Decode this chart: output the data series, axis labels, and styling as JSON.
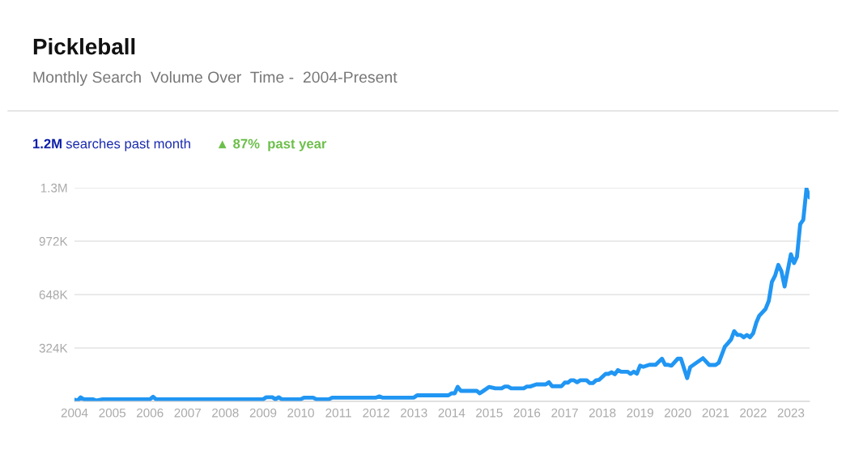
{
  "chart_data": {
    "type": "line",
    "title": "Pickleball",
    "subtitle": "Monthly Search  Volume Over  Time -  2004-Present",
    "annotations": [
      "1.2M",
      "searches past month",
      "▲ 87%  past year"
    ],
    "x": [
      "2004-01",
      "2004-02",
      "2004-03",
      "2004-04",
      "2004-07",
      "2004-08",
      "2004-10",
      "2006-01",
      "2006-02",
      "2006-03",
      "2009-01",
      "2009-02",
      "2009-04",
      "2009-05",
      "2009-06",
      "2009-07",
      "2010-01",
      "2010-02",
      "2010-05",
      "2010-06",
      "2010-10",
      "2010-11",
      "2012-01",
      "2012-02",
      "2012-03",
      "2013-01",
      "2013-02",
      "2013-12",
      "2014-01",
      "2014-02",
      "2014-03",
      "2014-04",
      "2014-09",
      "2014-10",
      "2014-11",
      "2015-01",
      "2015-03",
      "2015-05",
      "2015-06",
      "2015-07",
      "2015-08",
      "2015-12",
      "2016-01",
      "2016-02",
      "2016-04",
      "2016-07",
      "2016-08",
      "2016-09",
      "2016-12",
      "2017-01",
      "2017-02",
      "2017-03",
      "2017-04",
      "2017-05",
      "2017-06",
      "2017-08",
      "2017-09",
      "2017-10",
      "2017-11",
      "2017-12",
      "2018-02",
      "2018-03",
      "2018-04",
      "2018-05",
      "2018-06",
      "2018-07",
      "2018-09",
      "2018-10",
      "2018-11",
      "2018-12",
      "2019-01",
      "2019-02",
      "2019-04",
      "2019-06",
      "2019-08",
      "2019-09",
      "2019-10",
      "2019-11",
      "2020-01",
      "2020-02",
      "2020-04",
      "2020-05",
      "2020-09",
      "2020-11",
      "2021-01",
      "2021-02",
      "2021-04",
      "2021-05",
      "2021-06",
      "2021-07",
      "2021-08",
      "2021-09",
      "2021-10",
      "2021-11",
      "2021-12",
      "2022-01",
      "2022-02",
      "2022-03",
      "2022-05",
      "2022-06",
      "2022-07",
      "2022-08",
      "2022-09",
      "2022-10",
      "2022-11",
      "2023-01",
      "2023-02",
      "2023-03",
      "2023-04",
      "2023-05",
      "2023-06",
      "2023-07"
    ],
    "series": [
      {
        "color": "#2196f3",
        "values": [
          10000,
          5000,
          25000,
          12000,
          12000,
          5000,
          13000,
          13000,
          28000,
          13000,
          13000,
          25000,
          25000,
          13000,
          25000,
          13000,
          13000,
          23000,
          23000,
          13000,
          13000,
          23000,
          23000,
          30000,
          23000,
          23000,
          37000,
          37000,
          49000,
          49000,
          88000,
          64000,
          64000,
          49000,
          62000,
          88000,
          79000,
          79000,
          90000,
          90000,
          79000,
          79000,
          90000,
          90000,
          103000,
          103000,
          116000,
          92000,
          92000,
          114000,
          114000,
          128000,
          128000,
          116000,
          128000,
          128000,
          111000,
          111000,
          128000,
          131000,
          167000,
          167000,
          177000,
          165000,
          190000,
          180000,
          180000,
          167000,
          180000,
          168000,
          217000,
          210000,
          222000,
          222000,
          259000,
          222000,
          222000,
          217000,
          259000,
          259000,
          141000,
          208000,
          262000,
          221000,
          221000,
          234000,
          332000,
          353000,
          376000,
          426000,
          403000,
          403000,
          389000,
          403000,
          389000,
          414000,
          480000,
          520000,
          561000,
          610000,
          725000,
          763000,
          828000,
          790000,
          697000,
          893000,
          839000,
          877000,
          1074000,
          1101000,
          1290000,
          1237000
        ]
      }
    ],
    "xlim": [
      "2004-01",
      "2023-07"
    ],
    "ylim": [
      0,
      1296000
    ],
    "xticks": [
      "2004",
      "2005",
      "2006",
      "2007",
      "2008",
      "2009",
      "2010",
      "2011",
      "2012",
      "2013",
      "2014",
      "2015",
      "2016",
      "2017",
      "2018",
      "2019",
      "2020",
      "2021",
      "2022",
      "2023"
    ],
    "yticks": [
      {
        "value": 0,
        "label": null
      },
      {
        "value": 324000,
        "label": "324K"
      },
      {
        "value": 648000,
        "label": "648K"
      },
      {
        "value": 972000,
        "label": "972K"
      },
      {
        "value": 1296000,
        "label": "1.3M"
      }
    ],
    "grid": "y",
    "marker": "none",
    "line_style": "solid"
  }
}
